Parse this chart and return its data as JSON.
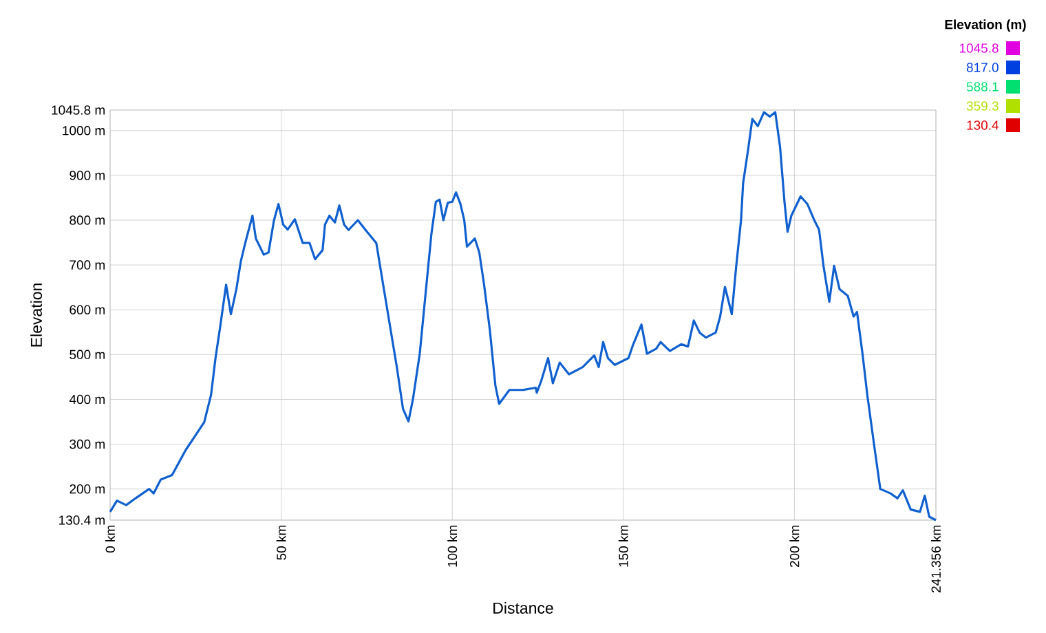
{
  "chart_data": {
    "type": "line",
    "xlabel": "Distance",
    "ylabel": "Elevation",
    "clabel": "Elevation (m)",
    "clim": [
      130.4,
      1045.8
    ],
    "cticks": [
      {
        "value": 130.4,
        "label": "130.4"
      },
      {
        "value": 359.3,
        "label": "359.3"
      },
      {
        "value": 588.1,
        "label": "588.1"
      },
      {
        "value": 817.0,
        "label": "817.0"
      },
      {
        "value": 1045.8,
        "label": "1045.8"
      }
    ],
    "x": [
      0,
      2,
      4.7,
      7.4,
      11.4,
      12.7,
      14.8,
      18.1,
      22.1,
      24.8,
      27.5,
      29.5,
      30.8,
      32.2,
      33.9,
      35.3,
      36.9,
      38.2,
      39.5,
      41.6,
      42.6,
      44.9,
      46.3,
      47.9,
      49.2,
      50.6,
      51.9,
      54.0,
      56.3,
      58.3,
      59.9,
      62.1,
      62.8,
      64.1,
      65.7,
      67.0,
      68.4,
      69.7,
      72.4,
      75.1,
      77.8,
      79.8,
      81.8,
      83.8,
      85.6,
      87.2,
      88.5,
      90.5,
      92.2,
      93.9,
      95.2,
      96.3,
      97.4,
      98.7,
      100.0,
      101.1,
      102.4,
      103.5,
      104.3,
      106.6,
      107.9,
      109.3,
      111.0,
      112.6,
      113.7,
      116.7,
      120.7,
      124.4,
      124.7,
      126.0,
      128.0,
      129.4,
      131.4,
      134.1,
      138.1,
      141.5,
      142.8,
      144.1,
      145.5,
      147.5,
      151.5,
      152.9,
      155.3,
      156.9,
      159.6,
      160.9,
      163.6,
      166.9,
      168.9,
      170.6,
      172.3,
      174.1,
      177.0,
      178.3,
      179.7,
      181.7,
      183.0,
      184.4,
      185.0,
      186.4,
      187.7,
      189.3,
      191.1,
      192.8,
      194.4,
      195.8,
      197.1,
      198.0,
      199.1,
      201.8,
      203.8,
      205.8,
      207.2,
      208.5,
      210.2,
      211.6,
      213.2,
      215.6,
      217.3,
      218.3,
      219.9,
      221.3,
      223.3,
      225.1,
      228.1,
      230.1,
      231.7,
      234.0,
      236.7,
      238.1,
      239.4,
      241.356
    ],
    "values": [
      149,
      174,
      164,
      179,
      200,
      190,
      221,
      231,
      287,
      318,
      349,
      410,
      492,
      564,
      656,
      590,
      646,
      708,
      749,
      810,
      759,
      723,
      728,
      800,
      836,
      790,
      779,
      802,
      749,
      749,
      713,
      733,
      790,
      810,
      795,
      833,
      790,
      778,
      800,
      774,
      749,
      656,
      564,
      472,
      379,
      351,
      400,
      502,
      636,
      769,
      841,
      846,
      800,
      839,
      841,
      862,
      836,
      800,
      741,
      759,
      728,
      656,
      554,
      431,
      390,
      421,
      421,
      426,
      415,
      441,
      492,
      436,
      482,
      456,
      472,
      498,
      472,
      528,
      492,
      477,
      492,
      523,
      567,
      502,
      513,
      528,
      508,
      523,
      518,
      576,
      549,
      538,
      549,
      585,
      651,
      590,
      698,
      800,
      882,
      954,
      1026,
      1010,
      1041,
      1031,
      1041,
      964,
      841,
      774,
      810,
      853,
      836,
      800,
      779,
      698,
      618,
      698,
      646,
      631,
      585,
      595,
      502,
      410,
      298,
      200,
      190,
      179,
      197,
      154,
      149,
      185,
      138,
      130.4
    ],
    "color": "#1060d0",
    "xlim": [
      0,
      241.356
    ],
    "ylim": [
      130.4,
      1045.8
    ],
    "xticks": [
      {
        "value": 0,
        "label": "0 km"
      },
      {
        "value": 50,
        "label": "50 km"
      },
      {
        "value": 100,
        "label": "100 km"
      },
      {
        "value": 150,
        "label": "150 km"
      },
      {
        "value": 200,
        "label": "200 km"
      },
      {
        "value": 241.356,
        "label": "241.356 km"
      }
    ],
    "yticks": [
      {
        "value": 130.4,
        "label": "130.4 m"
      },
      {
        "value": 200,
        "label": "200 m"
      },
      {
        "value": 300,
        "label": "300 m"
      },
      {
        "value": 400,
        "label": "400 m"
      },
      {
        "value": 500,
        "label": "500 m"
      },
      {
        "value": 600,
        "label": "600 m"
      },
      {
        "value": 700,
        "label": "700 m"
      },
      {
        "value": 800,
        "label": "800 m"
      },
      {
        "value": 900,
        "label": "900 m"
      },
      {
        "value": 1000,
        "label": "1000 m"
      },
      {
        "value": 1045.8,
        "label": "1045.8 m"
      }
    ],
    "grid": true
  }
}
